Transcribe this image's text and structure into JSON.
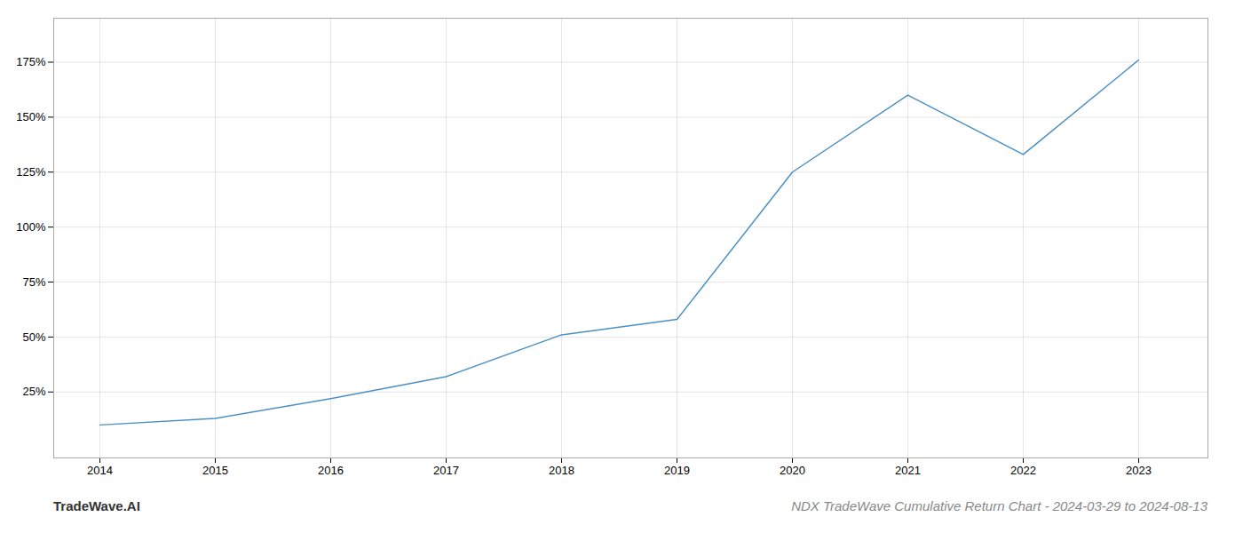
{
  "chart_data": {
    "type": "line",
    "title": "NDX TradeWave Cumulative Return Chart - 2024-03-29 to 2024-08-13",
    "annotations": [
      "TradeWave.AI"
    ],
    "x": [
      2014,
      2015,
      2016,
      2017,
      2018,
      2019,
      2020,
      2021,
      2022,
      2023
    ],
    "values": [
      10,
      13,
      22,
      32,
      51,
      58,
      125,
      160,
      133,
      176
    ],
    "color": "#4a90c4",
    "xlim": [
      2013.6,
      2023.6
    ],
    "xticks": [
      2014,
      2015,
      2016,
      2017,
      2018,
      2019,
      2020,
      2021,
      2022,
      2023
    ],
    "ylim": [
      -5,
      195
    ],
    "yticks": [
      {
        "value": 25,
        "label": "25%"
      },
      {
        "value": 50,
        "label": "50%"
      },
      {
        "value": 75,
        "label": "75%"
      },
      {
        "value": 100,
        "label": "100%"
      },
      {
        "value": 125,
        "label": "125%"
      },
      {
        "value": 150,
        "label": "150%"
      },
      {
        "value": 175,
        "label": "175%"
      }
    ],
    "grid": true
  }
}
